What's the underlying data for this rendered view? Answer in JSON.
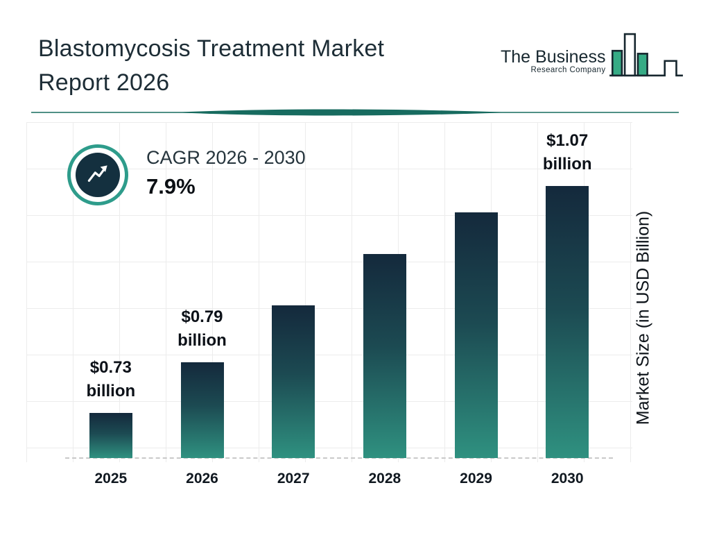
{
  "header": {
    "title_line1": "Blastomycosis Treatment Market",
    "title_line2": "Report 2026"
  },
  "logo": {
    "line1": "The Business",
    "line2": "Research Company"
  },
  "cagr": {
    "label": "CAGR 2026 - 2030",
    "value": "7.9%"
  },
  "chart_data": {
    "type": "bar",
    "title": "Blastomycosis Treatment Market Report 2026",
    "categories": [
      "2025",
      "2026",
      "2027",
      "2028",
      "2029",
      "2030"
    ],
    "values": [
      0.73,
      0.79,
      0.85,
      0.92,
      0.99,
      1.07
    ],
    "value_labels": [
      "$0.73 billion",
      "$0.79 billion",
      "",
      "",
      "",
      "$1.07 billion"
    ],
    "xlabel": "",
    "ylabel": "Market Size (in USD Billion)",
    "unit": "USD Billion",
    "grid": true,
    "legend": false,
    "bar_height_fractions": [
      0.167,
      0.351,
      0.562,
      0.749,
      0.903,
      1.0
    ],
    "colors": {
      "bar_top": "#14293c",
      "bar_mid": "#1c4a52",
      "bar_bottom": "#2f9180",
      "accent_teal": "#2e9c8b",
      "icon_circle": "#14303f",
      "divider": "#176b5f",
      "grid": "#ececec",
      "logo_teal": "#36ab85",
      "logo_outline": "#17272f"
    }
  }
}
